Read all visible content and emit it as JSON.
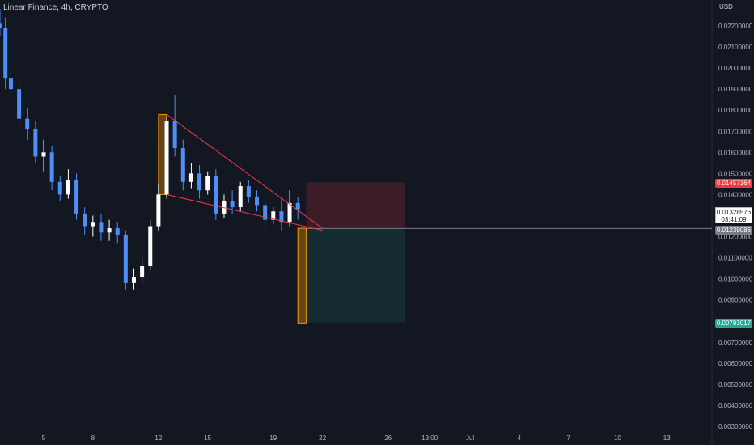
{
  "header": {
    "title": "Linear Finance, 4h, CRYPTO",
    "currency": "USD"
  },
  "price_scale": {
    "ticks": [
      "0.02200000",
      "0.02100000",
      "0.02000000",
      "0.01900000",
      "0.01800000",
      "0.01700000",
      "0.01600000",
      "0.01500000",
      "0.01400000",
      "0.01200000",
      "0.01100000",
      "0.01000000",
      "0.00900000",
      "0.00700000",
      "0.00600000",
      "0.00500000",
      "0.00400000",
      "0.00300000"
    ],
    "badge_top": "0.01457164",
    "badge_entry": "0.01239086",
    "badge_target": "0.00793017",
    "last_price": "0.01328576",
    "countdown": "03:41:09"
  },
  "time_scale": {
    "ticks": [
      "5",
      "8",
      "12",
      "15",
      "19",
      "22",
      "26",
      "13:00",
      "Jul",
      "4",
      "7",
      "10",
      "13"
    ]
  },
  "colors": {
    "background": "#131722",
    "candle": "#4f8ef7",
    "candle_alt": "#ffffff",
    "trendline": "#f23645",
    "highlight": "#ff9800",
    "stop_zone": "#f23645",
    "target_zone": "#22ab94"
  },
  "chart_data": {
    "type": "candlestick",
    "title": "Linear Finance, 4h, CRYPTO",
    "xlabel": "",
    "ylabel": "USD",
    "ylim": [
      0.003,
      0.023
    ],
    "x_range": [
      "Jun 2",
      "Jul 15"
    ],
    "candles": [
      {
        "t": "Jun 2 08:00",
        "o": 0.0221,
        "h": 0.0228,
        "l": 0.0215,
        "c": 0.0219
      },
      {
        "t": "Jun 2 16:00",
        "o": 0.0219,
        "h": 0.0224,
        "l": 0.019,
        "c": 0.0195
      },
      {
        "t": "Jun 3 00:00",
        "o": 0.0195,
        "h": 0.0201,
        "l": 0.0184,
        "c": 0.019
      },
      {
        "t": "Jun 3 12:00",
        "o": 0.019,
        "h": 0.0193,
        "l": 0.0172,
        "c": 0.0176
      },
      {
        "t": "Jun 4 00:00",
        "o": 0.0176,
        "h": 0.0181,
        "l": 0.0166,
        "c": 0.0171
      },
      {
        "t": "Jun 4 12:00",
        "o": 0.0171,
        "h": 0.0175,
        "l": 0.0155,
        "c": 0.0158
      },
      {
        "t": "Jun 5 00:00",
        "o": 0.0158,
        "h": 0.0166,
        "l": 0.0151,
        "c": 0.016
      },
      {
        "t": "Jun 5 12:00",
        "o": 0.016,
        "h": 0.0163,
        "l": 0.0142,
        "c": 0.0146
      },
      {
        "t": "Jun 6 00:00",
        "o": 0.0146,
        "h": 0.0149,
        "l": 0.0137,
        "c": 0.014
      },
      {
        "t": "Jun 6 12:00",
        "o": 0.014,
        "h": 0.0152,
        "l": 0.0138,
        "c": 0.0147
      },
      {
        "t": "Jun 7 00:00",
        "o": 0.0147,
        "h": 0.015,
        "l": 0.0128,
        "c": 0.0131
      },
      {
        "t": "Jun 7 12:00",
        "o": 0.0131,
        "h": 0.0134,
        "l": 0.0121,
        "c": 0.0125
      },
      {
        "t": "Jun 8 00:00",
        "o": 0.0125,
        "h": 0.013,
        "l": 0.012,
        "c": 0.0127
      },
      {
        "t": "Jun 8 12:00",
        "o": 0.0127,
        "h": 0.0131,
        "l": 0.0118,
        "c": 0.0122
      },
      {
        "t": "Jun 9 00:00",
        "o": 0.0122,
        "h": 0.0128,
        "l": 0.0118,
        "c": 0.0124
      },
      {
        "t": "Jun 9 12:00",
        "o": 0.0124,
        "h": 0.0127,
        "l": 0.0117,
        "c": 0.0121
      },
      {
        "t": "Jun 10 00:00",
        "o": 0.0121,
        "h": 0.0123,
        "l": 0.0095,
        "c": 0.0098
      },
      {
        "t": "Jun 10 12:00",
        "o": 0.0098,
        "h": 0.0105,
        "l": 0.0095,
        "c": 0.0101
      },
      {
        "t": "Jun 11 00:00",
        "o": 0.0101,
        "h": 0.011,
        "l": 0.0098,
        "c": 0.0106
      },
      {
        "t": "Jun 11 12:00",
        "o": 0.0106,
        "h": 0.0128,
        "l": 0.0104,
        "c": 0.0125
      },
      {
        "t": "Jun 12 00:00",
        "o": 0.0125,
        "h": 0.0145,
        "l": 0.0123,
        "c": 0.014
      },
      {
        "t": "Jun 12 12:00",
        "o": 0.014,
        "h": 0.0177,
        "l": 0.0138,
        "c": 0.0175
      },
      {
        "t": "Jun 13 00:00",
        "o": 0.0175,
        "h": 0.0187,
        "l": 0.0158,
        "c": 0.0162
      },
      {
        "t": "Jun 13 12:00",
        "o": 0.0162,
        "h": 0.0166,
        "l": 0.0142,
        "c": 0.0146
      },
      {
        "t": "Jun 14 00:00",
        "o": 0.0146,
        "h": 0.0155,
        "l": 0.0143,
        "c": 0.015
      },
      {
        "t": "Jun 14 12:00",
        "o": 0.015,
        "h": 0.0154,
        "l": 0.0138,
        "c": 0.0142
      },
      {
        "t": "Jun 15 00:00",
        "o": 0.0142,
        "h": 0.0151,
        "l": 0.014,
        "c": 0.0149
      },
      {
        "t": "Jun 15 12:00",
        "o": 0.0149,
        "h": 0.0152,
        "l": 0.0128,
        "c": 0.0131
      },
      {
        "t": "Jun 16 00:00",
        "o": 0.0131,
        "h": 0.014,
        "l": 0.0129,
        "c": 0.0137
      },
      {
        "t": "Jun 16 12:00",
        "o": 0.0137,
        "h": 0.0142,
        "l": 0.0131,
        "c": 0.0134
      },
      {
        "t": "Jun 17 00:00",
        "o": 0.0134,
        "h": 0.0146,
        "l": 0.0132,
        "c": 0.0144
      },
      {
        "t": "Jun 17 12:00",
        "o": 0.0144,
        "h": 0.0147,
        "l": 0.0136,
        "c": 0.0139
      },
      {
        "t": "Jun 18 00:00",
        "o": 0.0139,
        "h": 0.0142,
        "l": 0.0132,
        "c": 0.0135
      },
      {
        "t": "Jun 18 12:00",
        "o": 0.0135,
        "h": 0.0137,
        "l": 0.0125,
        "c": 0.0128
      },
      {
        "t": "Jun 19 00:00",
        "o": 0.0128,
        "h": 0.0134,
        "l": 0.0126,
        "c": 0.0132
      },
      {
        "t": "Jun 19 12:00",
        "o": 0.0132,
        "h": 0.0138,
        "l": 0.0123,
        "c": 0.0127
      },
      {
        "t": "Jun 20 00:00",
        "o": 0.0127,
        "h": 0.0142,
        "l": 0.0125,
        "c": 0.0136
      },
      {
        "t": "Jun 20 12:00",
        "o": 0.0136,
        "h": 0.0139,
        "l": 0.0128,
        "c": 0.0133
      }
    ],
    "trendlines": [
      {
        "from": {
          "t": "Jun 12 12:00",
          "v": 0.0178
        },
        "to": {
          "t": "Jun 22 00:00",
          "v": 0.0124
        }
      },
      {
        "from": {
          "t": "Jun 12 12:00",
          "v": 0.014
        },
        "to": {
          "t": "Jun 22 00:00",
          "v": 0.0123
        }
      }
    ],
    "highlights": [
      {
        "from": "Jun 12 00:00",
        "to": "Jun 12 12:00",
        "low": 0.014,
        "high": 0.0178
      },
      {
        "from": "Jun 20 12:00",
        "to": "Jun 21 00:00",
        "low": 0.0079,
        "high": 0.0124
      }
    ],
    "position": {
      "start": "Jun 21 00:00",
      "end": "Jun 27 00:00",
      "stop": 0.01457164,
      "entry": 0.01239086,
      "target": 0.00793017
    },
    "last_price": 0.01328576
  }
}
